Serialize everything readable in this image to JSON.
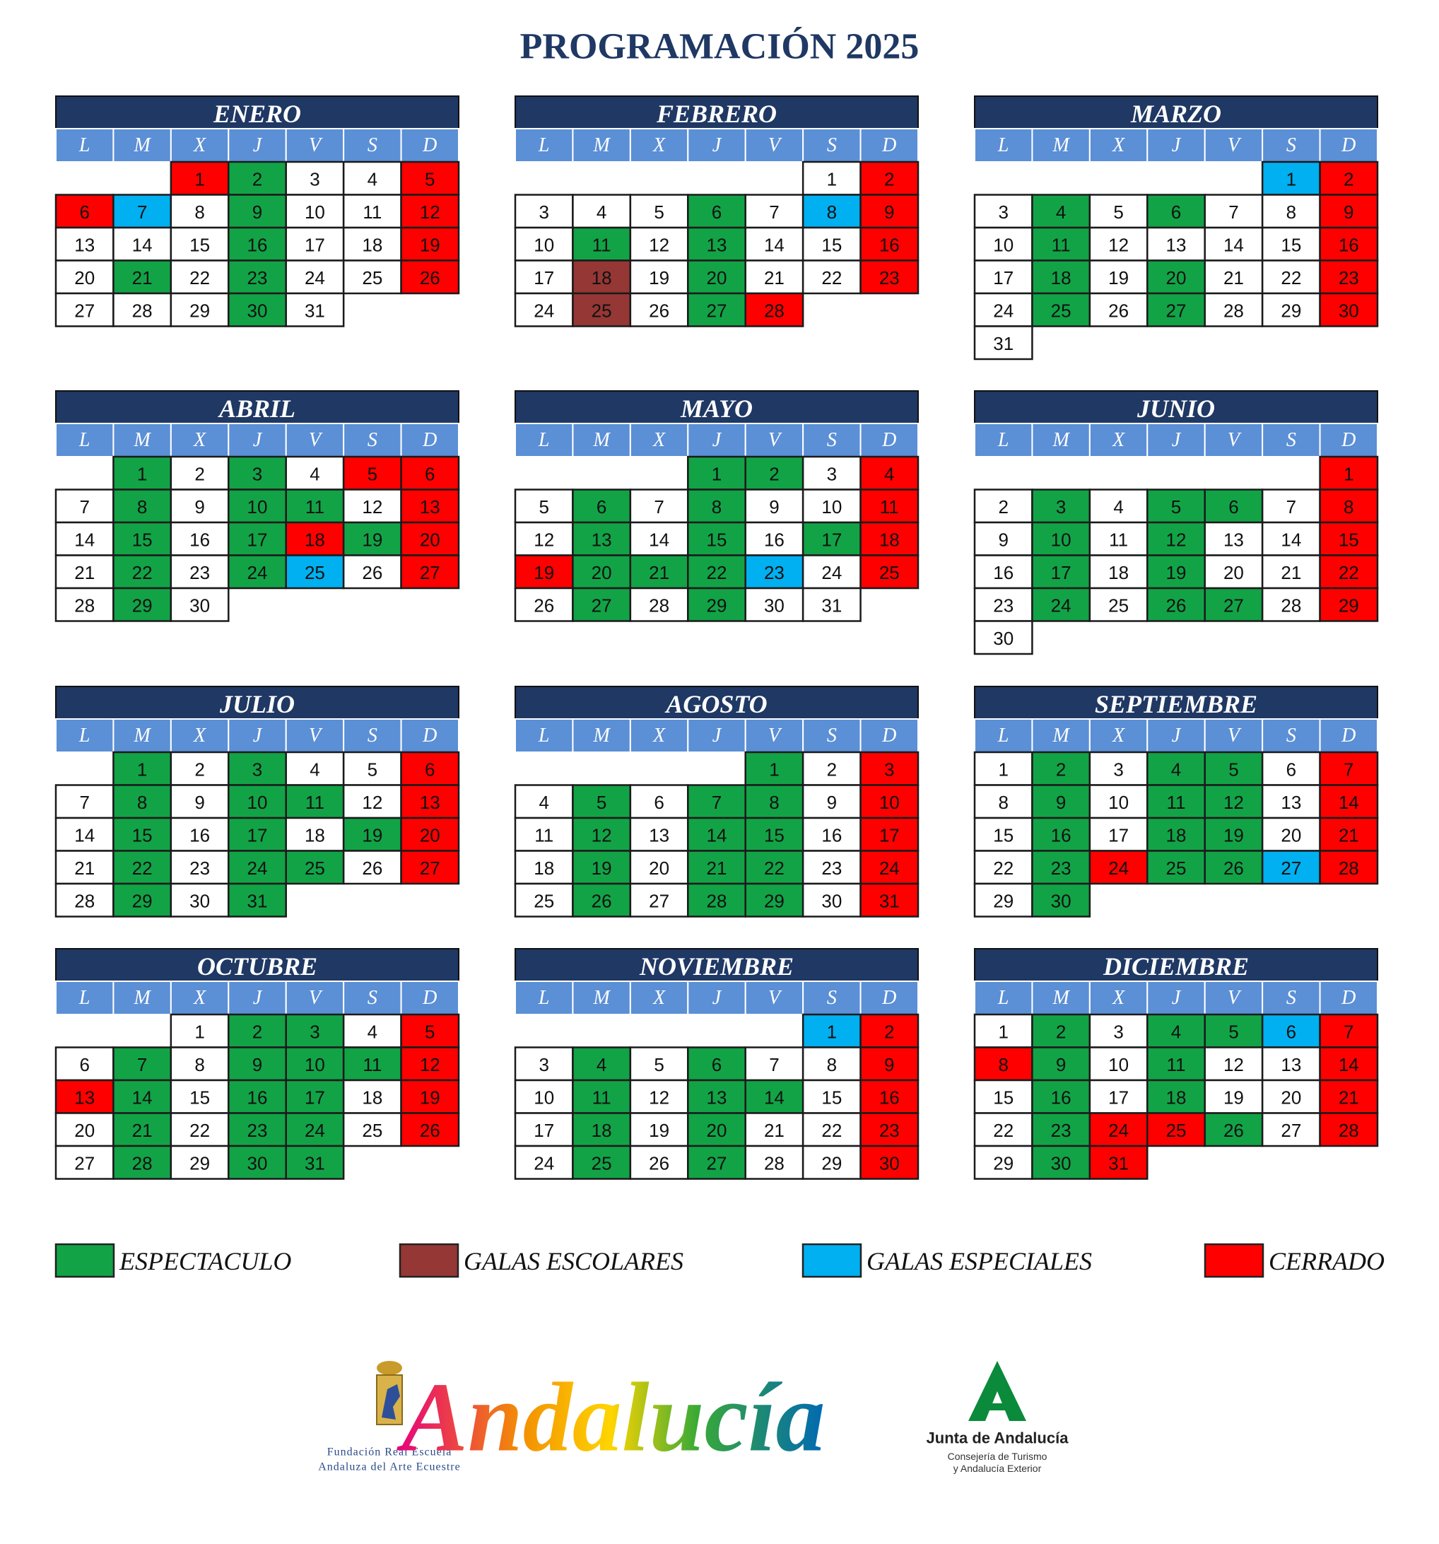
{
  "title": "PROGRAMACIÓN 2025",
  "weekdays": [
    "L",
    "M",
    "X",
    "J",
    "V",
    "S",
    "D"
  ],
  "legend": [
    {
      "label": "ESPECTACULO",
      "color": "#12a347"
    },
    {
      "label": "GALAS ESCOLARES",
      "color": "#953735"
    },
    {
      "label": "GALAS ESPECIALES",
      "color": "#00b0f0"
    },
    {
      "label": "CERRADO",
      "color": "#ff0000"
    }
  ],
  "months": [
    {
      "name": "ENERO",
      "weeks": [
        [
          null,
          null,
          1,
          2,
          3,
          4,
          5
        ],
        [
          6,
          7,
          8,
          9,
          10,
          11,
          12
        ],
        [
          13,
          14,
          15,
          16,
          17,
          18,
          19
        ],
        [
          20,
          21,
          22,
          23,
          24,
          25,
          26
        ],
        [
          27,
          28,
          29,
          30,
          31
        ]
      ],
      "marked": [
        [
          2,
          9,
          16,
          21,
          23,
          30
        ],
        [],
        [
          7
        ],
        [
          1,
          5,
          6,
          12,
          19,
          26
        ]
      ]
    },
    {
      "name": "FEBRERO",
      "weeks": [
        [
          null,
          null,
          null,
          null,
          null,
          1,
          2
        ],
        [
          3,
          4,
          5,
          6,
          7,
          8,
          9
        ],
        [
          10,
          11,
          12,
          13,
          14,
          15,
          16
        ],
        [
          17,
          18,
          19,
          20,
          21,
          22,
          23
        ],
        [
          24,
          25,
          26,
          27,
          28
        ]
      ],
      "marked": [
        [
          6,
          11,
          13,
          20,
          27
        ],
        [
          18,
          25
        ],
        [
          8
        ],
        [
          2,
          9,
          16,
          23,
          28
        ]
      ]
    },
    {
      "name": "MARZO",
      "weeks": [
        [
          null,
          null,
          null,
          null,
          null,
          1,
          2
        ],
        [
          3,
          4,
          5,
          6,
          7,
          8,
          9
        ],
        [
          10,
          11,
          12,
          13,
          14,
          15,
          16
        ],
        [
          17,
          18,
          19,
          20,
          21,
          22,
          23
        ],
        [
          24,
          25,
          26,
          27,
          28,
          29,
          30
        ],
        [
          31
        ]
      ],
      "marked": [
        [
          4,
          6,
          11,
          18,
          20,
          25,
          27
        ],
        [],
        [
          1
        ],
        [
          2,
          9,
          16,
          23,
          30
        ]
      ]
    },
    {
      "name": "ABRIL",
      "weeks": [
        [
          null,
          1,
          2,
          3,
          4,
          5,
          6
        ],
        [
          7,
          8,
          9,
          10,
          11,
          12,
          13
        ],
        [
          14,
          15,
          16,
          17,
          18,
          19,
          20
        ],
        [
          21,
          22,
          23,
          24,
          25,
          26,
          27
        ],
        [
          28,
          29,
          30
        ]
      ],
      "marked": [
        [
          1,
          3,
          8,
          10,
          11,
          15,
          17,
          19,
          22,
          24,
          29
        ],
        [],
        [
          25
        ],
        [
          5,
          6,
          13,
          18,
          20,
          27
        ]
      ]
    },
    {
      "name": "MAYO",
      "weeks": [
        [
          null,
          null,
          null,
          1,
          2,
          3,
          4
        ],
        [
          5,
          6,
          7,
          8,
          9,
          10,
          11
        ],
        [
          12,
          13,
          14,
          15,
          16,
          17,
          18
        ],
        [
          19,
          20,
          21,
          22,
          23,
          24,
          25
        ],
        [
          26,
          27,
          28,
          29,
          30,
          31
        ]
      ],
      "marked": [
        [
          1,
          2,
          6,
          8,
          13,
          15,
          17,
          20,
          21,
          22,
          27,
          29
        ],
        [],
        [
          23
        ],
        [
          4,
          11,
          18,
          19,
          25
        ]
      ]
    },
    {
      "name": "JUNIO",
      "weeks": [
        [
          null,
          null,
          null,
          null,
          null,
          null,
          1
        ],
        [
          2,
          3,
          4,
          5,
          6,
          7,
          8
        ],
        [
          9,
          10,
          11,
          12,
          13,
          14,
          15
        ],
        [
          16,
          17,
          18,
          19,
          20,
          21,
          22
        ],
        [
          23,
          24,
          25,
          26,
          27,
          28,
          29
        ],
        [
          30
        ]
      ],
      "marked": [
        [
          3,
          5,
          6,
          10,
          12,
          17,
          19,
          24,
          26,
          27
        ],
        [],
        [],
        [
          1,
          8,
          15,
          22,
          29
        ]
      ]
    },
    {
      "name": "JULIO",
      "weeks": [
        [
          null,
          1,
          2,
          3,
          4,
          5,
          6
        ],
        [
          7,
          8,
          9,
          10,
          11,
          12,
          13
        ],
        [
          14,
          15,
          16,
          17,
          18,
          19,
          20
        ],
        [
          21,
          22,
          23,
          24,
          25,
          26,
          27
        ],
        [
          28,
          29,
          30,
          31
        ]
      ],
      "marked": [
        [
          1,
          3,
          8,
          10,
          11,
          15,
          17,
          19,
          22,
          24,
          25,
          29,
          31
        ],
        [],
        [],
        [
          6,
          13,
          20,
          27
        ]
      ]
    },
    {
      "name": "AGOSTO",
      "weeks": [
        [
          null,
          null,
          null,
          null,
          1,
          2,
          3
        ],
        [
          4,
          5,
          6,
          7,
          8,
          9,
          10
        ],
        [
          11,
          12,
          13,
          14,
          15,
          16,
          17
        ],
        [
          18,
          19,
          20,
          21,
          22,
          23,
          24
        ],
        [
          25,
          26,
          27,
          28,
          29,
          30,
          31
        ]
      ],
      "marked": [
        [
          1,
          5,
          7,
          8,
          12,
          14,
          15,
          19,
          21,
          22,
          26,
          28,
          29
        ],
        [],
        [],
        [
          3,
          10,
          17,
          24,
          31
        ]
      ]
    },
    {
      "name": "SEPTIEMBRE",
      "weeks": [
        [
          1,
          2,
          3,
          4,
          5,
          6,
          7
        ],
        [
          8,
          9,
          10,
          11,
          12,
          13,
          14
        ],
        [
          15,
          16,
          17,
          18,
          19,
          20,
          21
        ],
        [
          22,
          23,
          24,
          25,
          26,
          27,
          28
        ],
        [
          29,
          30
        ]
      ],
      "marked": [
        [
          2,
          4,
          5,
          9,
          11,
          12,
          16,
          18,
          19,
          23,
          25,
          26,
          30
        ],
        [],
        [
          27
        ],
        [
          7,
          14,
          21,
          24,
          28
        ]
      ]
    },
    {
      "name": "OCTUBRE",
      "weeks": [
        [
          null,
          null,
          1,
          2,
          3,
          4,
          5
        ],
        [
          6,
          7,
          8,
          9,
          10,
          11,
          12
        ],
        [
          13,
          14,
          15,
          16,
          17,
          18,
          19
        ],
        [
          20,
          21,
          22,
          23,
          24,
          25,
          26
        ],
        [
          27,
          28,
          29,
          30,
          31
        ]
      ],
      "marked": [
        [
          2,
          3,
          7,
          9,
          10,
          11,
          14,
          16,
          17,
          21,
          23,
          24,
          28,
          30,
          31
        ],
        [],
        [],
        [
          5,
          12,
          13,
          19,
          26
        ]
      ]
    },
    {
      "name": "NOVIEMBRE",
      "weeks": [
        [
          null,
          null,
          null,
          null,
          null,
          1,
          2
        ],
        [
          3,
          4,
          5,
          6,
          7,
          8,
          9
        ],
        [
          10,
          11,
          12,
          13,
          14,
          15,
          16
        ],
        [
          17,
          18,
          19,
          20,
          21,
          22,
          23
        ],
        [
          24,
          25,
          26,
          27,
          28,
          29,
          30
        ]
      ],
      "marked": [
        [
          4,
          6,
          11,
          13,
          14,
          18,
          20,
          25,
          27
        ],
        [],
        [
          1
        ],
        [
          2,
          9,
          16,
          23,
          30
        ]
      ]
    },
    {
      "name": "DICIEMBRE",
      "weeks": [
        [
          1,
          2,
          3,
          4,
          5,
          6,
          7
        ],
        [
          8,
          9,
          10,
          11,
          12,
          13,
          14
        ],
        [
          15,
          16,
          17,
          18,
          19,
          20,
          21
        ],
        [
          22,
          23,
          24,
          25,
          26,
          27,
          28
        ],
        [
          29,
          30,
          31
        ]
      ],
      "marked": [
        [
          2,
          4,
          5,
          9,
          11,
          16,
          18,
          23,
          26,
          30
        ],
        [],
        [
          6
        ],
        [
          7,
          8,
          14,
          21,
          24,
          25,
          28,
          31
        ]
      ]
    }
  ],
  "logos": {
    "fundacion": [
      "Fundación Real Escuela",
      "Andaluza del Arte Ecuestre"
    ],
    "andalucia": "Andalucía",
    "junta": "Junta de Andalucía",
    "junta_sub": [
      "Consejería de Turismo",
      "y Andalucía Exterior"
    ]
  }
}
